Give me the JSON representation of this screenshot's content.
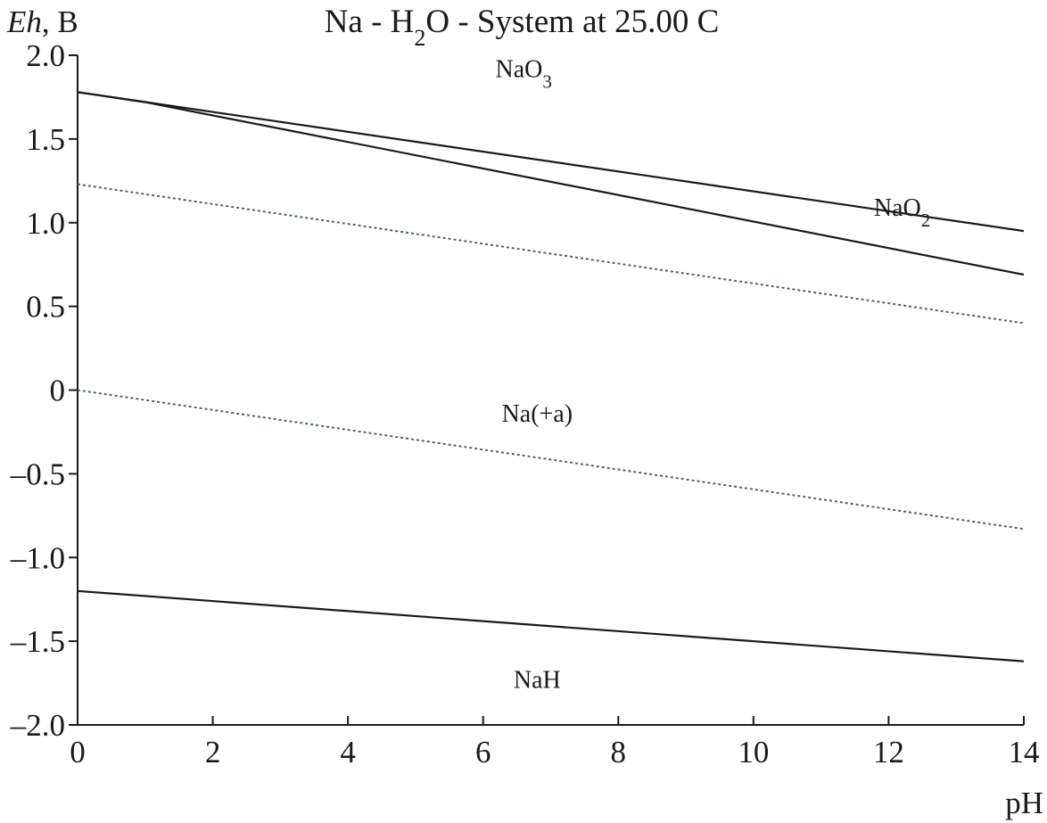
{
  "chart_data": {
    "type": "line",
    "title": {
      "prefix": "Na - H",
      "subscript": "2",
      "suffix": "O - System at 25.00 C"
    },
    "ylabel": {
      "italic": "Eh",
      "rest": ", B"
    },
    "xlabel": "pH",
    "xlim": [
      0,
      14
    ],
    "ylim": [
      -2.0,
      2.0
    ],
    "x_ticks": [
      {
        "value": 0,
        "label": "0"
      },
      {
        "value": 2,
        "label": "2"
      },
      {
        "value": 4,
        "label": "4"
      },
      {
        "value": 6,
        "label": "6"
      },
      {
        "value": 8,
        "label": "8"
      },
      {
        "value": 10,
        "label": "10"
      },
      {
        "value": 12,
        "label": "12"
      },
      {
        "value": 14,
        "label": "14"
      }
    ],
    "y_ticks": [
      {
        "value": 2.0,
        "label": "2.0"
      },
      {
        "value": 1.5,
        "label": "1.5"
      },
      {
        "value": 1.0,
        "label": "1.0"
      },
      {
        "value": 0.5,
        "label": "0.5"
      },
      {
        "value": 0.0,
        "label": "0"
      },
      {
        "value": -0.5,
        "label": "–0.5"
      },
      {
        "value": -1.0,
        "label": "–1.0"
      },
      {
        "value": -1.5,
        "label": "–1.5"
      },
      {
        "value": -2.0,
        "label": "–2.0"
      }
    ],
    "grid": false,
    "lines": [
      {
        "style": "solid",
        "x": [
          0,
          14
        ],
        "y": [
          1.78,
          0.95
        ]
      },
      {
        "style": "solid",
        "x": [
          0,
          1,
          14
        ],
        "y": [
          1.78,
          1.72,
          0.69
        ]
      },
      {
        "style": "dotted",
        "x": [
          0,
          14
        ],
        "y": [
          1.23,
          0.4
        ]
      },
      {
        "style": "dotted",
        "x": [
          0,
          14
        ],
        "y": [
          0.0,
          -0.83
        ]
      },
      {
        "style": "solid",
        "x": [
          0,
          14
        ],
        "y": [
          -1.2,
          -1.62
        ]
      }
    ],
    "region_labels": [
      {
        "base": "NaO",
        "sub": "3",
        "x": 6.6,
        "y": 1.87
      },
      {
        "base": "NaO",
        "sub": "2",
        "x": 12.2,
        "y": 1.04
      },
      {
        "base": "Na(+a)",
        "sub": "",
        "x": 6.8,
        "y": -0.19
      },
      {
        "base": "NaH",
        "sub": "",
        "x": 6.8,
        "y": -1.78
      }
    ]
  }
}
